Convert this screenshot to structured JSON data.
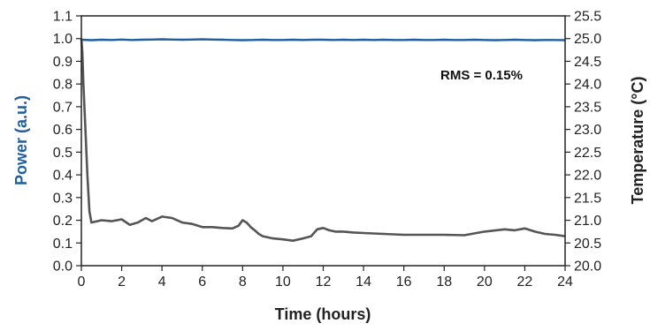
{
  "chart_data": {
    "type": "line",
    "xlabel": "Time (hours)",
    "ylabel_left": "Power (a.u.)",
    "ylabel_right": "Temperature (°C)",
    "xlim": [
      0,
      24
    ],
    "ylim_left": [
      0.0,
      1.1
    ],
    "ylim_right": [
      20.0,
      25.5
    ],
    "x_ticks": [
      "0",
      "2",
      "4",
      "6",
      "8",
      "10",
      "12",
      "14",
      "16",
      "18",
      "20",
      "22",
      "24"
    ],
    "y_left_ticks": [
      "0.0",
      "0.1",
      "0.2",
      "0.3",
      "0.4",
      "0.5",
      "0.6",
      "0.7",
      "0.8",
      "0.9",
      "1.0",
      "1.1"
    ],
    "y_right_ticks": [
      "20.0",
      "20.5",
      "21.0",
      "21.5",
      "22.0",
      "22.5",
      "23.0",
      "23.5",
      "24.0",
      "24.5",
      "25.0",
      "25.5"
    ],
    "grid": false,
    "annotation": "RMS = 0.15%",
    "colors": {
      "power": "#1f5fa0",
      "temperature": "#555555",
      "axis": "#222222"
    },
    "series": [
      {
        "axis": "left",
        "x": [
          0,
          0.5,
          1,
          1.5,
          2,
          2.5,
          3,
          3.5,
          4,
          4.5,
          5,
          5.5,
          6,
          6.5,
          7,
          7.5,
          8,
          8.5,
          9,
          9.5,
          10,
          10.5,
          11,
          11.5,
          12,
          12.5,
          13,
          13.5,
          14,
          14.5,
          15,
          15.5,
          16,
          16.5,
          17,
          17.5,
          18,
          18.5,
          19,
          19.5,
          20,
          20.5,
          21,
          21.5,
          22,
          22.5,
          23,
          23.5,
          24
        ],
        "values": [
          0.995,
          0.993,
          0.995,
          0.994,
          0.996,
          0.994,
          0.995,
          0.996,
          0.997,
          0.996,
          0.995,
          0.996,
          0.997,
          0.996,
          0.995,
          0.994,
          0.993,
          0.994,
          0.995,
          0.994,
          0.994,
          0.995,
          0.994,
          0.995,
          0.995,
          0.994,
          0.995,
          0.994,
          0.995,
          0.994,
          0.995,
          0.994,
          0.994,
          0.995,
          0.994,
          0.994,
          0.995,
          0.994,
          0.994,
          0.995,
          0.994,
          0.993,
          0.994,
          0.995,
          0.994,
          0.993,
          0.994,
          0.994,
          0.993
        ]
      },
      {
        "axis": "right",
        "x": [
          0,
          0.05,
          0.1,
          0.2,
          0.3,
          0.4,
          0.5,
          1,
          1.5,
          2,
          2.4,
          2.8,
          3.2,
          3.5,
          4,
          4.5,
          5,
          5.5,
          6,
          6.5,
          7,
          7.5,
          7.8,
          8,
          8.2,
          8.4,
          8.6,
          8.8,
          9,
          9.5,
          10,
          10.5,
          11,
          11.4,
          11.7,
          12,
          12.3,
          12.6,
          13,
          13.5,
          14,
          15,
          16,
          17,
          18,
          19,
          20,
          21,
          21.5,
          22,
          22.5,
          23,
          23.5,
          24
        ],
        "values": [
          25.0,
          24.7,
          24.0,
          23.0,
          22.0,
          21.2,
          20.95,
          21.0,
          20.98,
          21.02,
          20.9,
          20.95,
          21.05,
          20.98,
          21.08,
          21.05,
          20.95,
          20.92,
          20.85,
          20.85,
          20.83,
          20.82,
          20.88,
          21.0,
          20.95,
          20.85,
          20.78,
          20.7,
          20.65,
          20.6,
          20.58,
          20.55,
          20.6,
          20.65,
          20.8,
          20.83,
          20.78,
          20.75,
          20.75,
          20.73,
          20.72,
          20.7,
          20.68,
          20.68,
          20.68,
          20.67,
          20.75,
          20.8,
          20.78,
          20.82,
          20.75,
          20.7,
          20.68,
          20.65
        ]
      }
    ]
  }
}
